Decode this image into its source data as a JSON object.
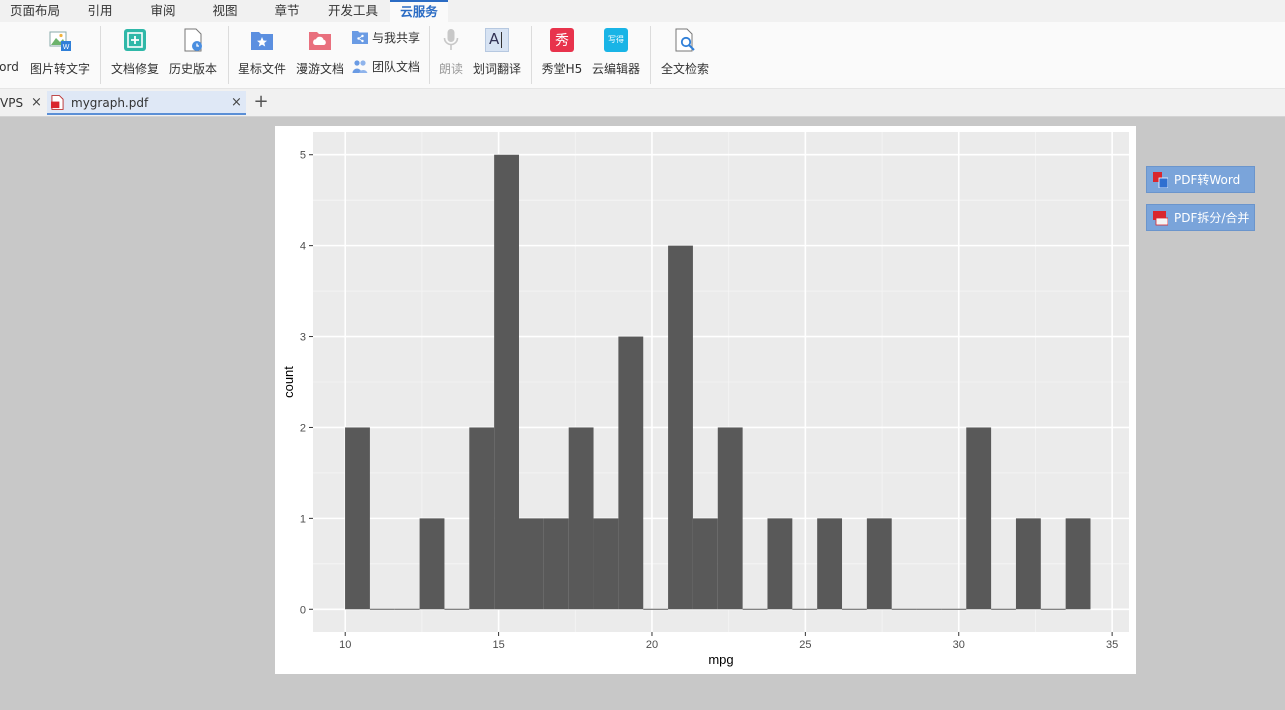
{
  "menu": {
    "tabs": [
      {
        "label": "页面布局",
        "active": false
      },
      {
        "label": "引用",
        "active": false
      },
      {
        "label": "审阅",
        "active": false
      },
      {
        "label": "视图",
        "active": false
      },
      {
        "label": "章节",
        "active": false
      },
      {
        "label": "开发工具",
        "active": false
      },
      {
        "label": "云服务",
        "active": true
      }
    ]
  },
  "ribbon": {
    "partial_label": "ord",
    "image_to_text": "图片转文字",
    "doc_repair": "文档修复",
    "history": "历史版本",
    "starred": "星标文件",
    "roaming": "漫游文档",
    "shared_with_me": "与我共享",
    "team_docs": "团队文档",
    "read_aloud": "朗读",
    "translate": "划词翻译",
    "show_h5": "秀堂H5",
    "cloud_editor": "云编辑器",
    "full_search": "全文检索",
    "icon_text_show": "秀",
    "icon_text_write": "写得",
    "icon_text_ai": "A"
  },
  "doctabs": {
    "partial_tab": "VPS",
    "active_tab": "mygraph.pdf",
    "close_glyph": "×",
    "new_tab_glyph": "+"
  },
  "side_buttons": {
    "pdf_to_word": "PDF转Word",
    "pdf_split_merge": "PDF拆分/合并"
  },
  "colors": {
    "accent": "#2b6cc4",
    "panel_bg": "#ebebeb",
    "bar_fill": "#595959",
    "side_button": "#7aa4da"
  },
  "chart_data": {
    "type": "bar",
    "xlabel": "mpg",
    "ylabel": "count",
    "xlim": [
      8.95,
      35.55
    ],
    "ylim": [
      -0.25,
      5.25
    ],
    "x_ticks": [
      10,
      15,
      20,
      25,
      30,
      35
    ],
    "y_ticks": [
      0,
      1,
      2,
      3,
      4,
      5
    ],
    "grid": true,
    "bin_width": 0.81,
    "bin_centers": [
      10.4,
      11.21,
      12.02,
      12.83,
      13.64,
      14.45,
      15.26,
      16.07,
      16.88,
      17.69,
      18.5,
      19.31,
      20.12,
      20.93,
      21.74,
      22.55,
      23.36,
      24.17,
      24.98,
      25.79,
      26.6,
      27.41,
      28.22,
      29.03,
      29.84,
      30.65,
      31.46,
      32.27,
      33.08,
      33.89
    ],
    "counts": [
      2,
      0,
      0,
      1,
      0,
      2,
      5,
      1,
      1,
      2,
      1,
      3,
      0,
      4,
      1,
      2,
      0,
      1,
      0,
      1,
      0,
      1,
      0,
      0,
      0,
      2,
      0,
      1,
      0,
      1
    ]
  }
}
